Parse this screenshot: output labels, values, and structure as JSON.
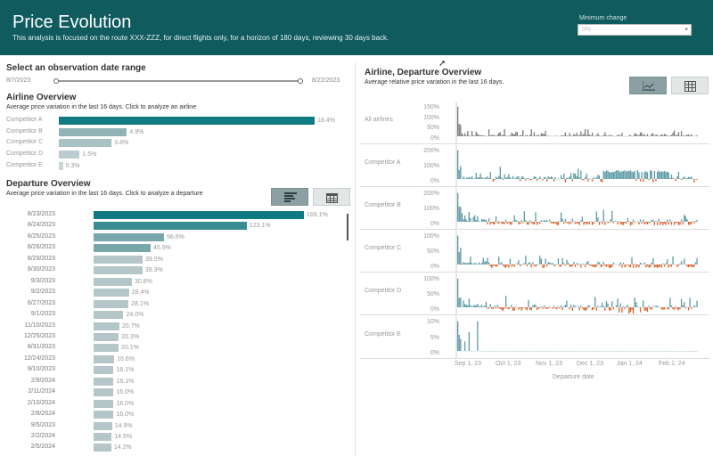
{
  "header": {
    "title": "Price Evolution",
    "subtitle": "This analysis is focused on the route XXX-ZZZ, for direct flights only, for a horizon of 180 days, reviewing 30 days back.",
    "min_change_label": "Minimum change",
    "min_change_value": "0%"
  },
  "observation": {
    "title": "Select an observation date range",
    "start": "8/7/2023",
    "end": "8/22/2023"
  },
  "airline_overview": {
    "title": "Airline Overview",
    "subtitle": "Average price variation in the last 16 days. Click to analyze an airline",
    "rows": [
      {
        "label": "Competitor A",
        "value": "18.4%",
        "pct": 18.4,
        "color": "#0f7a80"
      },
      {
        "label": "Competitor B",
        "value": "4.9%",
        "pct": 4.9,
        "color": "#8fb3b7"
      },
      {
        "label": "Competitor C",
        "value": "3.8%",
        "pct": 3.8,
        "color": "#a9c2c5"
      },
      {
        "label": "Competitor D",
        "value": "1.5%",
        "pct": 1.5,
        "color": "#bccdcf"
      },
      {
        "label": "Competitor E",
        "value": "0.3%",
        "pct": 0.3,
        "color": "#c9d5d7"
      }
    ]
  },
  "departure_overview": {
    "title": "Departure Overview",
    "subtitle": "Average  price variation in the last 16 days. Click to analyze a departure",
    "rows": [
      {
        "label": "8/23/2023",
        "value": "169.1%",
        "pct": 169.1
      },
      {
        "label": "8/24/2023",
        "value": "123.1%",
        "pct": 123.1
      },
      {
        "label": "8/25/2023",
        "value": "56.6%",
        "pct": 56.6
      },
      {
        "label": "8/26/2023",
        "value": "45.9%",
        "pct": 45.9
      },
      {
        "label": "8/29/2023",
        "value": "39.5%",
        "pct": 39.5
      },
      {
        "label": "8/30/2023",
        "value": "39.3%",
        "pct": 39.3
      },
      {
        "label": "9/3/2023",
        "value": "30.8%",
        "pct": 30.8
      },
      {
        "label": "9/2/2023",
        "value": "28.4%",
        "pct": 28.4
      },
      {
        "label": "8/27/2023",
        "value": "28.1%",
        "pct": 28.1
      },
      {
        "label": "9/1/2023",
        "value": "24.0%",
        "pct": 24.0
      },
      {
        "label": "11/10/2023",
        "value": "20.7%",
        "pct": 20.7
      },
      {
        "label": "12/25/2023",
        "value": "20.3%",
        "pct": 20.3
      },
      {
        "label": "8/31/2023",
        "value": "20.1%",
        "pct": 20.1
      },
      {
        "label": "12/24/2023",
        "value": "16.6%",
        "pct": 16.6
      },
      {
        "label": "9/10/2023",
        "value": "16.1%",
        "pct": 16.1
      },
      {
        "label": "2/9/2024",
        "value": "16.1%",
        "pct": 16.1
      },
      {
        "label": "2/11/2024",
        "value": "16.0%",
        "pct": 16.0
      },
      {
        "label": "2/10/2024",
        "value": "16.0%",
        "pct": 16.0
      },
      {
        "label": "2/8/2024",
        "value": "16.0%",
        "pct": 16.0
      },
      {
        "label": "9/5/2023",
        "value": "14.9%",
        "pct": 14.9
      },
      {
        "label": "2/2/2024",
        "value": "14.5%",
        "pct": 14.5
      },
      {
        "label": "2/5/2024",
        "value": "14.2%",
        "pct": 14.2
      }
    ]
  },
  "airline_departure": {
    "title": "Airline, Departure Overview",
    "subtitle": "Average relative price variation in the last 16 days.",
    "panels": [
      {
        "label": "All airlines",
        "ticks": [
          "150%",
          "100%",
          "50%",
          "0%"
        ],
        "pos_color": "#7c7c7c",
        "neg_color": "#7c7c7c"
      },
      {
        "label": "Competitor A",
        "ticks": [
          "200%",
          "100%",
          "0%"
        ],
        "pos_color": "#5c9aa5",
        "neg_color": "#d9622b"
      },
      {
        "label": "Competitor B",
        "ticks": [
          "200%",
          "100%",
          "0%"
        ],
        "pos_color": "#5c9aa5",
        "neg_color": "#d9622b"
      },
      {
        "label": "Competitor C",
        "ticks": [
          "100%",
          "50%",
          "0%"
        ],
        "pos_color": "#5c9aa5",
        "neg_color": "#d9622b"
      },
      {
        "label": "Competitor D",
        "ticks": [
          "100%",
          "50%",
          "0%"
        ],
        "pos_color": "#5c9aa5",
        "neg_color": "#d9622b"
      },
      {
        "label": "Competitor E",
        "ticks": [
          "10%",
          "5%",
          "0%"
        ],
        "pos_color": "#5c9aa5",
        "neg_color": "#d9622b"
      }
    ],
    "x_ticks": [
      "Sep 1, 23",
      "Oct 1, 23",
      "Nov 1, 23",
      "Dec 1, 23",
      "Jan 1, 24",
      "Feb 1, 24"
    ],
    "x_title": "Departure date"
  }
}
